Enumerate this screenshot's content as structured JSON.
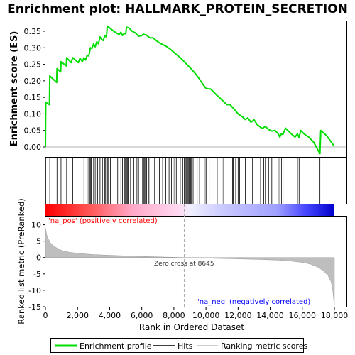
{
  "chart_data": {
    "type": "line",
    "title": "Enrichment plot: HALLMARK_PROTEIN_SECRETION",
    "xlabel": "Rank in Ordered Dataset",
    "xlim": [
      0,
      18000
    ],
    "x_ticks": [
      0,
      2000,
      4000,
      6000,
      8000,
      10000,
      12000,
      14000,
      16000,
      18000
    ],
    "x_tick_labels": [
      "0",
      "2,000",
      "4,000",
      "6,000",
      "8,000",
      "10,000",
      "12,000",
      "14,000",
      "16,000",
      "18,000"
    ],
    "panels": {
      "es": {
        "ylabel": "Enrichment score (ES)",
        "ylim": [
          -0.03,
          0.38
        ],
        "y_ticks": [
          0.0,
          0.05,
          0.1,
          0.15,
          0.2,
          0.25,
          0.3,
          0.35
        ],
        "y_tick_labels": [
          "0.00",
          "0.05",
          "0.10",
          "0.15",
          "0.20",
          "0.25",
          "0.30",
          "0.35"
        ],
        "series": [
          {
            "name": "Enrichment profile",
            "color": "#00dd00",
            "points": [
              [
                0,
                0.0
              ],
              [
                20,
                0.135
              ],
              [
                250,
                0.128
              ],
              [
                270,
                0.215
              ],
              [
                700,
                0.195
              ],
              [
                720,
                0.237
              ],
              [
                950,
                0.227
              ],
              [
                970,
                0.258
              ],
              [
                1300,
                0.245
              ],
              [
                1320,
                0.27
              ],
              [
                1600,
                0.255
              ],
              [
                1700,
                0.27
              ],
              [
                2050,
                0.255
              ],
              [
                2150,
                0.268
              ],
              [
                2300,
                0.258
              ],
              [
                2400,
                0.27
              ],
              [
                2500,
                0.263
              ],
              [
                2600,
                0.277
              ],
              [
                2700,
                0.275
              ],
              [
                2800,
                0.3
              ],
              [
                2900,
                0.298
              ],
              [
                3000,
                0.312
              ],
              [
                3100,
                0.303
              ],
              [
                3200,
                0.318
              ],
              [
                3300,
                0.312
              ],
              [
                3400,
                0.333
              ],
              [
                3500,
                0.325
              ],
              [
                3600,
                0.322
              ],
              [
                3700,
                0.336
              ],
              [
                3800,
                0.333
              ],
              [
                3850,
                0.365
              ],
              [
                4000,
                0.36
              ],
              [
                4200,
                0.352
              ],
              [
                4400,
                0.345
              ],
              [
                4600,
                0.34
              ],
              [
                4700,
                0.347
              ],
              [
                4800,
                0.337
              ],
              [
                4900,
                0.343
              ],
              [
                5000,
                0.342
              ],
              [
                5050,
                0.362
              ],
              [
                5200,
                0.36
              ],
              [
                5400,
                0.35
              ],
              [
                5600,
                0.345
              ],
              [
                5800,
                0.335
              ],
              [
                6000,
                0.337
              ],
              [
                6100,
                0.341
              ],
              [
                6300,
                0.338
              ],
              [
                6500,
                0.33
              ],
              [
                6700,
                0.33
              ],
              [
                7000,
                0.318
              ],
              [
                7200,
                0.312
              ],
              [
                7500,
                0.305
              ],
              [
                7800,
                0.295
              ],
              [
                8100,
                0.282
              ],
              [
                8400,
                0.27
              ],
              [
                8700,
                0.255
              ],
              [
                9000,
                0.24
              ],
              [
                9300,
                0.224
              ],
              [
                9600,
                0.205
              ],
              [
                9800,
                0.19
              ],
              [
                10000,
                0.177
              ],
              [
                10300,
                0.175
              ],
              [
                10600,
                0.16
              ],
              [
                11000,
                0.142
              ],
              [
                11300,
                0.128
              ],
              [
                11500,
                0.128
              ],
              [
                11800,
                0.112
              ],
              [
                12000,
                0.1
              ],
              [
                12300,
                0.09
              ],
              [
                12450,
                0.083
              ],
              [
                12600,
                0.088
              ],
              [
                12800,
                0.075
              ],
              [
                13000,
                0.082
              ],
              [
                13200,
                0.067
              ],
              [
                13500,
                0.056
              ],
              [
                13700,
                0.062
              ],
              [
                13900,
                0.053
              ],
              [
                14100,
                0.048
              ],
              [
                14300,
                0.05
              ],
              [
                14500,
                0.04
              ],
              [
                14600,
                0.03
              ],
              [
                14700,
                0.04
              ],
              [
                14800,
                0.038
              ],
              [
                14950,
                0.057
              ],
              [
                15100,
                0.05
              ],
              [
                15300,
                0.04
              ],
              [
                15550,
                0.03
              ],
              [
                15700,
                0.04
              ],
              [
                15800,
                0.028
              ],
              [
                15900,
                0.05
              ],
              [
                16100,
                0.04
              ],
              [
                16400,
                0.03
              ],
              [
                16700,
                0.015
              ],
              [
                17100,
                -0.02
              ],
              [
                17150,
                0.05
              ],
              [
                17500,
                0.035
              ],
              [
                17800,
                0.015
              ],
              [
                18000,
                0.002
              ]
            ]
          }
        ]
      },
      "hits": {
        "series_name": "Hits",
        "color": "#000000",
        "positions": [
          20,
          270,
          720,
          970,
          1320,
          1700,
          2150,
          2400,
          2600,
          2700,
          2750,
          2800,
          2850,
          2900,
          3000,
          3100,
          3200,
          3250,
          3400,
          3550,
          3650,
          3700,
          3750,
          3850,
          3900,
          4050,
          4500,
          4700,
          4800,
          4900,
          4950,
          5000,
          5050,
          5100,
          5150,
          5300,
          5500,
          5700,
          5800,
          5950,
          6050,
          6100,
          6150,
          6200,
          6300,
          6400,
          6450,
          6700,
          6800,
          7100,
          7300,
          7500,
          7700,
          7850,
          7950,
          8050,
          8150,
          8400,
          8550,
          8650,
          8750,
          8800,
          8850,
          8900,
          8950,
          9000,
          9050,
          9100,
          9200,
          9450,
          9600,
          9750,
          9900,
          10000,
          10050,
          10200,
          10700,
          11000,
          11100,
          11650,
          11700,
          11850,
          12000,
          12100,
          12450,
          12900,
          13400,
          13600,
          13700,
          13900,
          14100,
          14500,
          14600,
          14700,
          14800,
          15550,
          15700,
          15800,
          17100
        ]
      },
      "metric": {
        "ylabel": "Ranked list metric (PreRanked)",
        "series_name": "Ranking metric scores",
        "color": "#bebebe",
        "ylim": [
          -15,
          12.5
        ],
        "y_ticks": [
          -15,
          -10,
          -5,
          0,
          5,
          10
        ],
        "y_tick_labels": [
          "-15",
          "-10",
          "-5",
          "0",
          "5",
          "10"
        ],
        "points": [
          [
            0,
            9.0
          ],
          [
            100,
            6.5
          ],
          [
            300,
            4.5
          ],
          [
            600,
            3.2
          ],
          [
            1000,
            2.2
          ],
          [
            1500,
            1.6
          ],
          [
            2000,
            1.3
          ],
          [
            3000,
            0.9
          ],
          [
            4000,
            0.7
          ],
          [
            5000,
            0.5
          ],
          [
            6000,
            0.35
          ],
          [
            7000,
            0.2
          ],
          [
            8000,
            0.08
          ],
          [
            8645,
            0.0
          ],
          [
            9500,
            -0.12
          ],
          [
            10500,
            -0.25
          ],
          [
            11500,
            -0.35
          ],
          [
            12500,
            -0.48
          ],
          [
            13500,
            -0.6
          ],
          [
            14500,
            -0.8
          ],
          [
            15000,
            -0.95
          ],
          [
            15500,
            -1.2
          ],
          [
            16000,
            -1.5
          ],
          [
            16500,
            -2.0
          ],
          [
            17000,
            -3.0
          ],
          [
            17300,
            -4.0
          ],
          [
            17600,
            -5.5
          ],
          [
            17800,
            -7.5
          ],
          [
            17900,
            -10.0
          ],
          [
            17980,
            -14.0
          ],
          [
            18000,
            -14.5
          ]
        ],
        "zero_cross_label": "Zero cross at 8645",
        "zero_cross": 8645,
        "pos_label": "'na_pos' (positively correlated)",
        "neg_label": "'na_neg' (negatively correlated)",
        "pos_color": "#ff0000",
        "neg_color": "#0000ff"
      }
    },
    "legend": {
      "placement": "bottom",
      "entries": [
        {
          "label": "Enrichment profile",
          "color": "#00dd00"
        },
        {
          "label": "Hits",
          "color": "#000000"
        },
        {
          "label": "Ranking metric scores",
          "color": "#bebebe"
        }
      ]
    }
  }
}
